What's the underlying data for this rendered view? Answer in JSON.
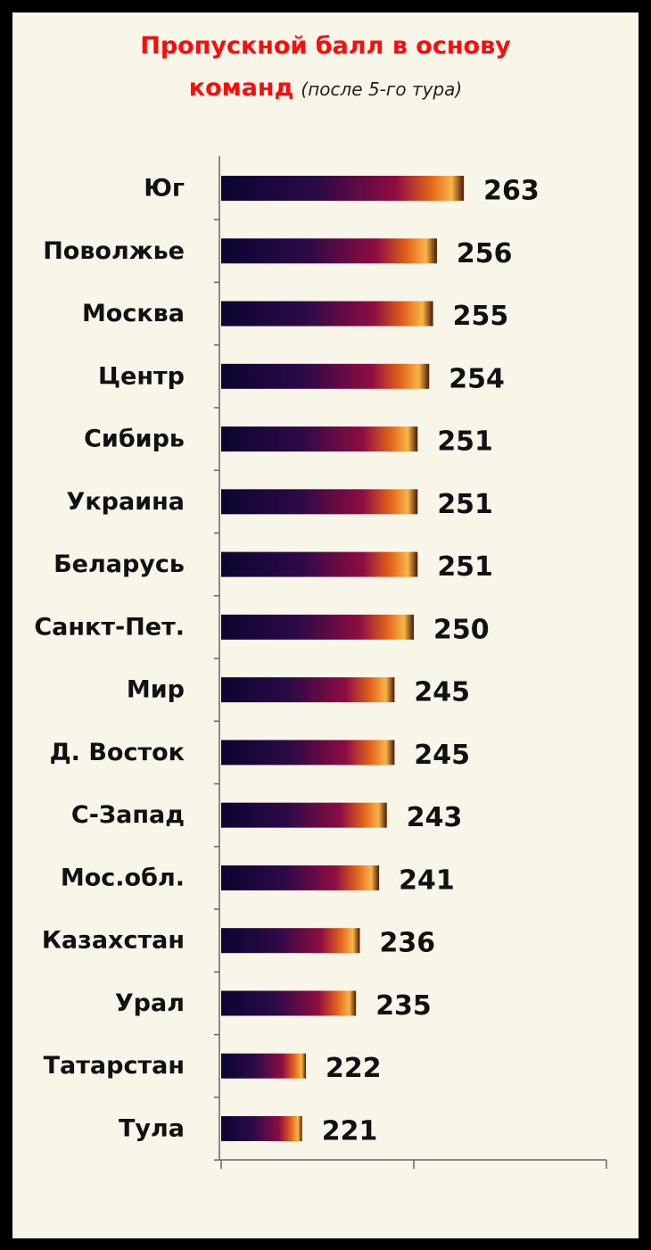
{
  "chart_data": {
    "type": "bar",
    "orientation": "horizontal",
    "title": "Пропускной балл в основу команд",
    "subtitle": "(после 5-го тура)",
    "categories": [
      "Юг",
      "Поволжье",
      "Москва",
      "Центр",
      "Сибирь",
      "Украина",
      "Беларусь",
      "Санкт-Пет.",
      "Мир",
      "Д. Восток",
      "С-Запад",
      "Мос.обл.",
      "Казахстан",
      "Урал",
      "Татарстан",
      "Тула"
    ],
    "values": [
      263,
      256,
      255,
      254,
      251,
      251,
      251,
      250,
      245,
      245,
      243,
      241,
      236,
      235,
      222,
      221
    ],
    "xlim": [
      200,
      300
    ],
    "xticks": [
      200,
      250,
      300
    ]
  }
}
